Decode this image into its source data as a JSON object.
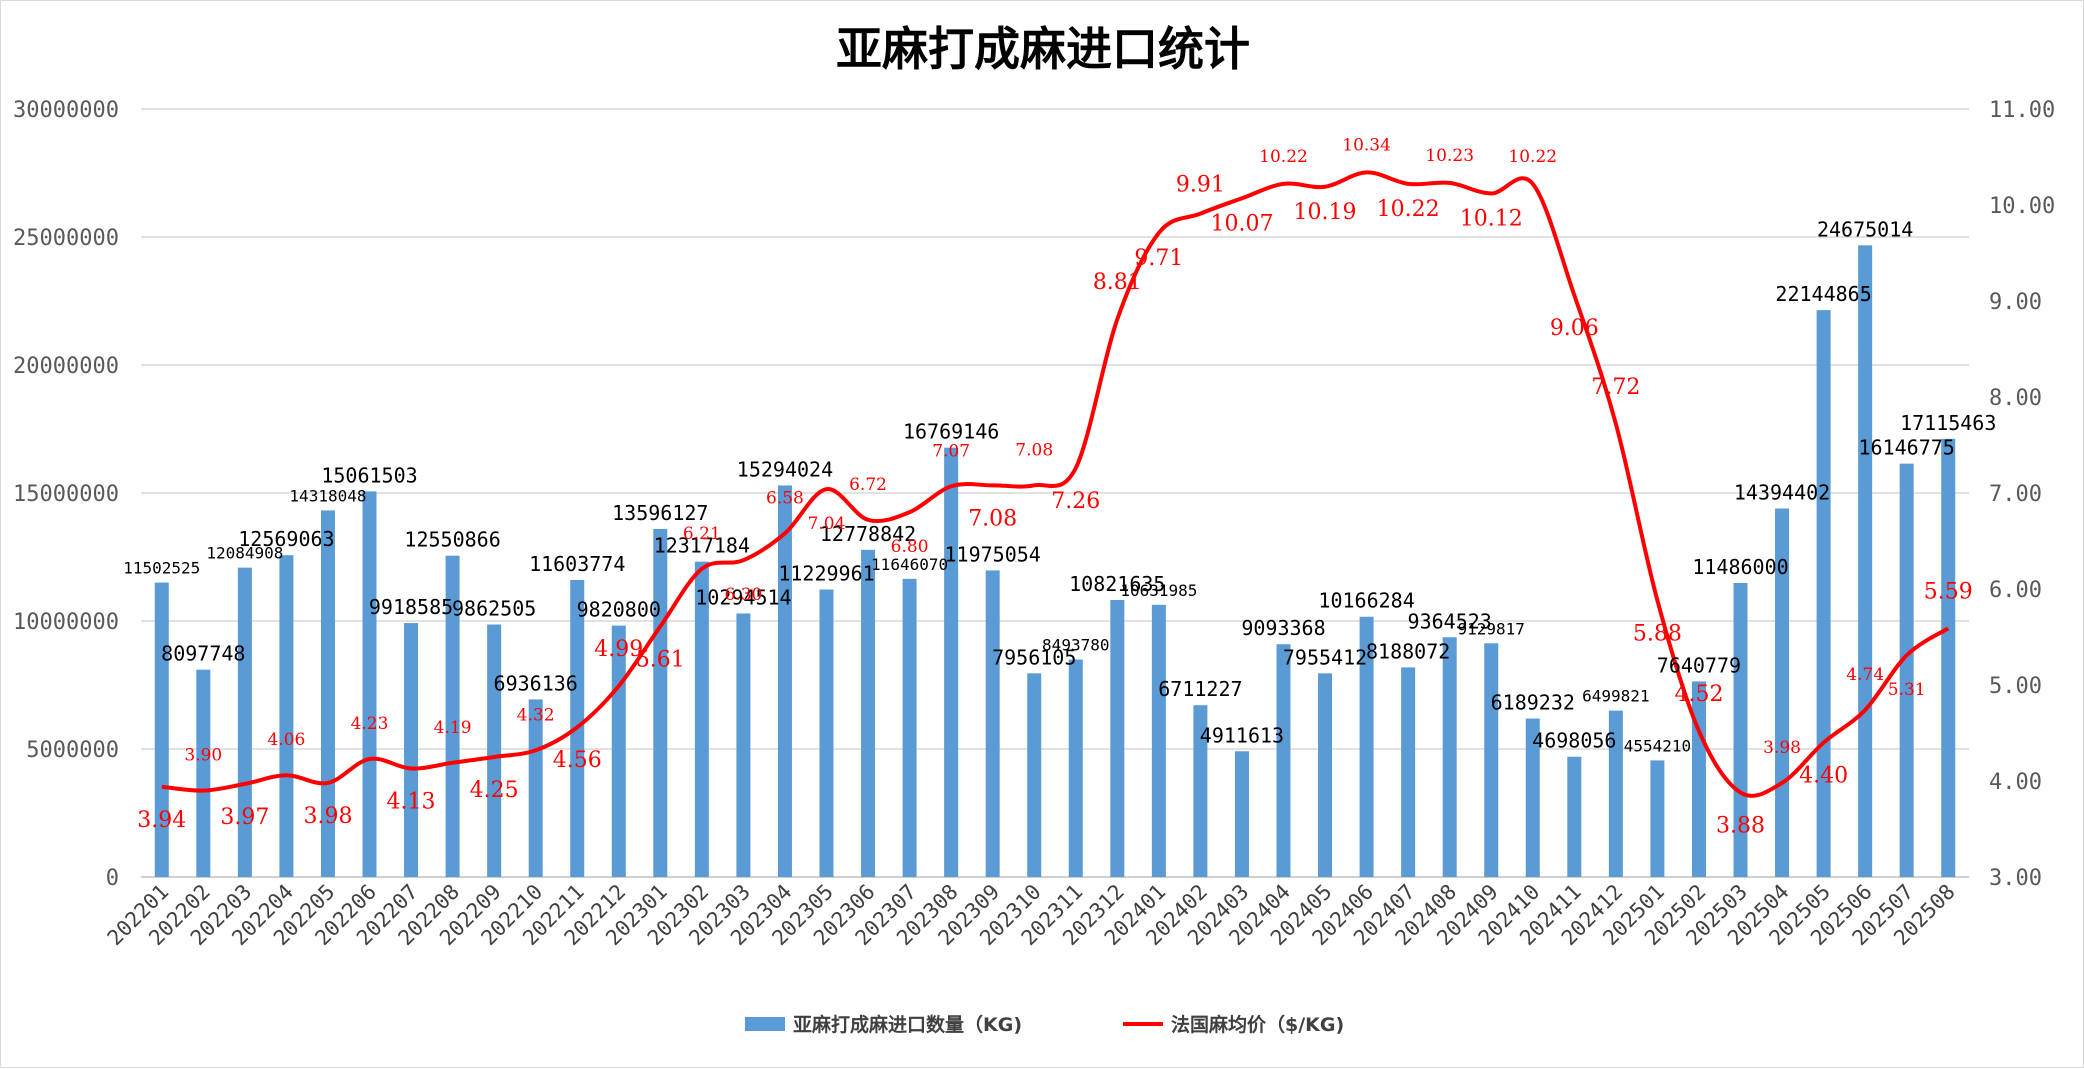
{
  "chart_data": {
    "type": "bar+line",
    "title": "亚麻打成麻进口统计",
    "categories": [
      "202201",
      "202202",
      "202203",
      "202204",
      "202205",
      "202206",
      "202207",
      "202208",
      "202209",
      "202210",
      "202211",
      "202212",
      "202301",
      "202302",
      "202303",
      "202304",
      "202305",
      "202306",
      "202307",
      "202308",
      "202309",
      "202310",
      "202311",
      "202312",
      "202401",
      "202402",
      "202403",
      "202404",
      "202405",
      "202406",
      "202407",
      "202408",
      "202409",
      "202410",
      "202411",
      "202412",
      "202501",
      "202502",
      "202503",
      "202504",
      "202505",
      "202506",
      "202507",
      "202508"
    ],
    "series": [
      {
        "name": "亚麻打成麻进口数量（KG)",
        "type": "bar",
        "axis": "left",
        "color": "#5b9bd5",
        "values": [
          11502525,
          8097748,
          12084908,
          12569063,
          14318048,
          15061503,
          9918585,
          12550866,
          9862505,
          6936136,
          11603774,
          9820800,
          13596127,
          12317184,
          10294514,
          15294024,
          11229961,
          12778842,
          11646070,
          16769146,
          11975054,
          7956105,
          8493780,
          10821635,
          10631985,
          6711227,
          4911613,
          9093368,
          7955412,
          10166284,
          8188072,
          9364523,
          9129817,
          6189232,
          4698056,
          6499821,
          4554210,
          7640779,
          11486000,
          14394402,
          22144865,
          24675014,
          16146775,
          17115463
        ],
        "labels": [
          "11502525",
          "8097748",
          "12084908",
          "12569063",
          "14318048",
          "15061503",
          "9918585",
          "12550866",
          "9862505",
          "6936136",
          "11603774",
          "9820800",
          "13596127",
          "12317184",
          "10294514",
          "15294024",
          "11229961",
          "12778842",
          "11646070",
          "16769146",
          "11975054",
          "7956105",
          "8493780",
          "10821635",
          "10631985",
          "6711227",
          "4911613",
          "9093368",
          "7955412",
          "10166284",
          "8188072",
          "9364523",
          "9129817",
          "6189232",
          "4698056",
          "6499821",
          "4554210",
          "7640779",
          "11486000",
          "14394402",
          "22144865",
          "24675014",
          "16146775",
          "17115463"
        ]
      },
      {
        "name": "法国麻均价（$/KG)",
        "type": "line",
        "axis": "right",
        "color": "#ff0000",
        "values": [
          3.94,
          3.9,
          3.97,
          4.06,
          3.98,
          4.23,
          4.13,
          4.19,
          4.25,
          4.32,
          4.56,
          4.99,
          5.61,
          6.21,
          6.3,
          6.58,
          7.04,
          6.72,
          6.8,
          7.07,
          7.08,
          7.08,
          7.26,
          8.81,
          9.71,
          9.91,
          10.07,
          10.22,
          10.19,
          10.34,
          10.22,
          10.23,
          10.12,
          10.22,
          9.06,
          7.72,
          5.88,
          4.52,
          3.88,
          3.98,
          4.4,
          4.74,
          5.31,
          5.59
        ],
        "labels": [
          "3.94",
          "3.90",
          "3.97",
          "4.06",
          "3.98",
          "4.23",
          "4.13",
          "4.19",
          "4.25",
          "4.32",
          "4.56",
          "4.99",
          "5.61",
          "6.21",
          "6.30",
          "6.58",
          "7.04",
          "6.72",
          "6.80",
          "7.07",
          "7.08",
          "7.08",
          "7.26",
          "8.81",
          "9.71",
          "9.91",
          "10.07",
          "10.22",
          "10.19",
          "10.34",
          "10.22",
          "10.23",
          "10.12",
          "10.22",
          "9.06",
          "7.72",
          "5.88",
          "4.52",
          "3.88",
          "3.98",
          "4.40",
          "4.74",
          "5.31",
          "5.59"
        ]
      }
    ],
    "y_left": {
      "min": 0,
      "max": 30000000,
      "ticks": [
        "0",
        "5000000",
        "10000000",
        "15000000",
        "20000000",
        "25000000",
        "30000000"
      ],
      "tick_values": [
        0,
        5000000,
        10000000,
        15000000,
        20000000,
        25000000,
        30000000
      ]
    },
    "y_right": {
      "min": 3,
      "max": 11,
      "ticks": [
        "3.00",
        "4.00",
        "5.00",
        "6.00",
        "7.00",
        "8.00",
        "9.00",
        "10.00",
        "11.00"
      ],
      "tick_values": [
        3,
        4,
        5,
        6,
        7,
        8,
        9,
        10,
        11
      ]
    },
    "grid": true,
    "legend_position": "bottom-center",
    "legend": [
      {
        "label": "亚麻打成麻进口数量（KG)",
        "color": "#5b9bd5"
      },
      {
        "label": "法国麻均价（$/KG)",
        "color": "#ff0000"
      }
    ]
  }
}
